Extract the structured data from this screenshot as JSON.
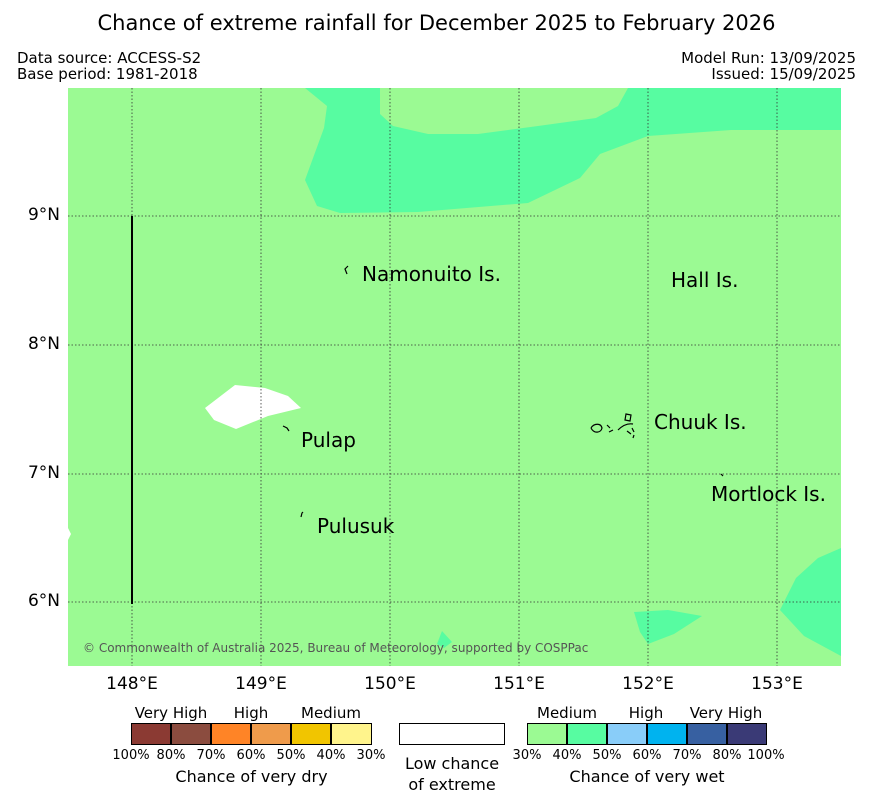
{
  "title": "Chance of extreme rainfall for December 2025 to February 2026",
  "header": {
    "data_source": "Data source: ACCESS-S2",
    "base_period": "Base period: 1981-2018",
    "model_run": "Model Run: 13/09/2025",
    "issued": "Issued: 15/09/2025"
  },
  "map": {
    "lat_ticks": [
      "9°N",
      "8°N",
      "7°N",
      "6°N"
    ],
    "lon_ticks": [
      "148°E",
      "149°E",
      "150°E",
      "151°E",
      "152°E",
      "153°E"
    ],
    "places": {
      "namonuito": "Namonuito Is.",
      "hall": "Hall Is.",
      "chuuk": "Chuuk Is.",
      "pulap": "Pulap",
      "pulusuk": "Pulusuk",
      "mortlock": "Mortlock Is."
    },
    "copyright": "© Commonwealth of Australia 2025, Bureau of Meteorology, supported by COSPPac"
  },
  "legend": {
    "dry": {
      "levels": [
        "Very High",
        "High",
        "Medium"
      ],
      "colors": [
        "#8b3a33",
        "#8b4c3f",
        "#ff8426",
        "#ef9b4b",
        "#f1c500",
        "#fff48c"
      ],
      "pcts": [
        "100%",
        "80%",
        "70%",
        "60%",
        "50%",
        "40%",
        "30%"
      ],
      "caption": "Chance of very dry"
    },
    "low": {
      "line1": "Low chance",
      "line2": "of extreme"
    },
    "wet": {
      "levels": [
        "Medium",
        "High",
        "Very High"
      ],
      "colors": [
        "#9bfa93",
        "#57fca1",
        "#89cdf9",
        "#00b3ef",
        "#3760a1",
        "#3a3a76"
      ],
      "pcts": [
        "30%",
        "40%",
        "50%",
        "60%",
        "70%",
        "80%",
        "100%"
      ],
      "caption": "Chance of very wet"
    }
  }
}
